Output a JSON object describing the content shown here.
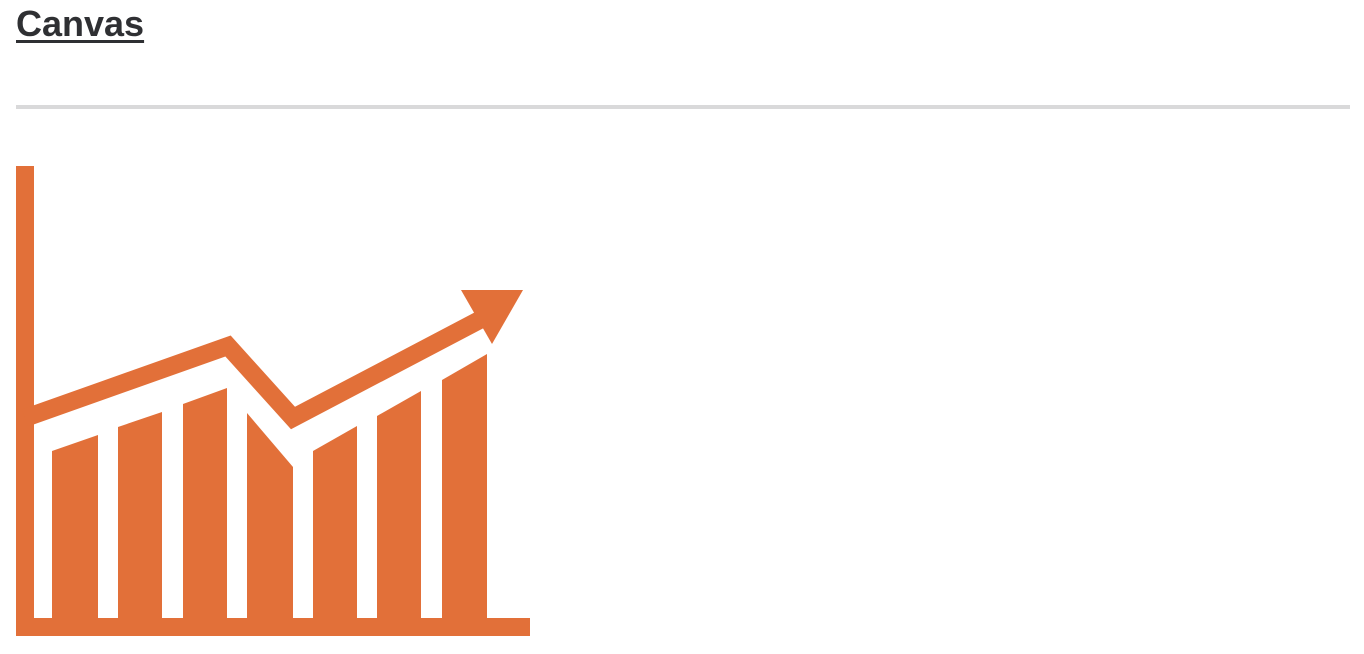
{
  "header": {
    "title": "Canvas"
  },
  "illustration": {
    "icon": "growth-chart-icon",
    "color": "#e27039"
  }
}
